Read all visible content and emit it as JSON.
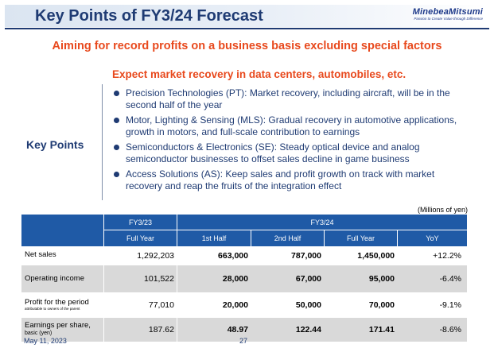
{
  "header": {
    "title": "Key Points of FY3/24 Forecast",
    "logo": "MinebeaMitsumi",
    "tagline": "Passion to Create Value through Difference"
  },
  "headline": "Aiming for record profits on a business basis excluding special factors",
  "subhead": "Expect market recovery in data centers, automobiles, etc.",
  "key_points_label": "Key Points",
  "bullets": [
    "Precision Technologies (PT):  Market recovery, including aircraft, will be in the second half of the year",
    "Motor, Lighting & Sensing (MLS): Gradual recovery in automotive applications, growth in motors, and full-scale contribution to earnings",
    "Semiconductors & Electronics (SE): Steady optical device and analog semiconductor businesses to offset sales decline in game business",
    "Access Solutions (AS): Keep sales and profit growth on track with market recovery and reap the fruits of the integration effect"
  ],
  "table": {
    "units": "(Millions of yen)",
    "group_headers": [
      "FY3/23",
      "FY3/24"
    ],
    "columns": [
      "Full Year",
      "1st Half",
      "2nd Half",
      "Full Year",
      "YoY"
    ],
    "rows": [
      {
        "label": "Net sales",
        "sub": "",
        "values": [
          "1,292,203",
          "663,000",
          "787,000",
          "1,450,000",
          "+12.2%"
        ]
      },
      {
        "label": "Operating income",
        "sub": "",
        "values": [
          "101,522",
          "28,000",
          "67,000",
          "95,000",
          "-6.4%"
        ]
      },
      {
        "label": "Profit for the period",
        "sub": "attributable to owners of the parent",
        "values": [
          "77,010",
          "20,000",
          "50,000",
          "70,000",
          "-9.1%"
        ]
      },
      {
        "label": "Earnings per share,",
        "sub2": "basic  (yen)",
        "values": [
          "187.62",
          "48.97",
          "122.44",
          "171.41",
          "-8.6%"
        ]
      }
    ]
  },
  "footer": {
    "date": "May 11, 2023",
    "page": "27"
  }
}
